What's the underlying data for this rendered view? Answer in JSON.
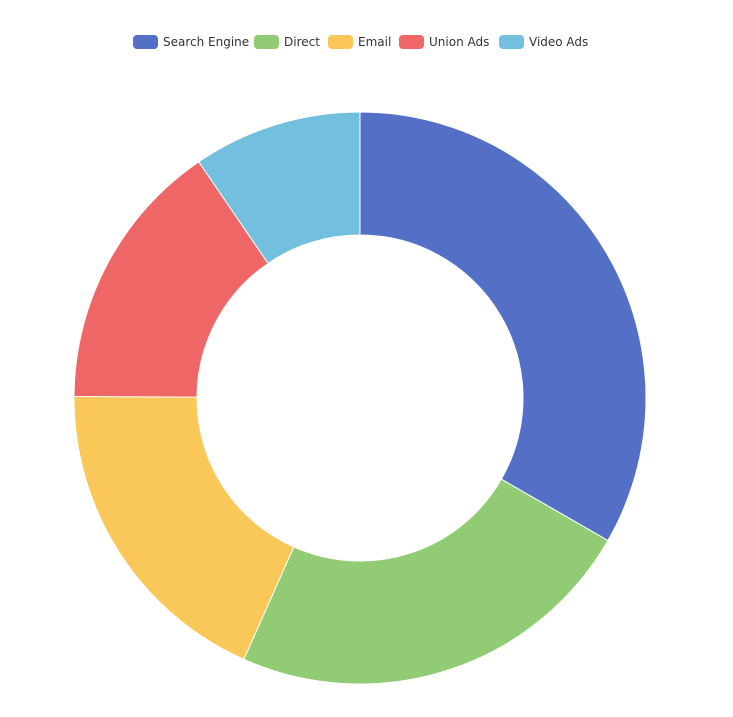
{
  "chart_data": {
    "type": "pie",
    "title": "",
    "variant": "donut",
    "series": [
      {
        "name": "Search Engine",
        "value": 1048,
        "color": "#5470c6"
      },
      {
        "name": "Direct",
        "value": 735,
        "color": "#91cc75"
      },
      {
        "name": "Email",
        "value": 580,
        "color": "#fac858"
      },
      {
        "name": "Union Ads",
        "value": 484,
        "color": "#ee6666"
      },
      {
        "name": "Video Ads",
        "value": 300,
        "color": "#73c0de"
      }
    ],
    "legend_position": "top-center"
  }
}
